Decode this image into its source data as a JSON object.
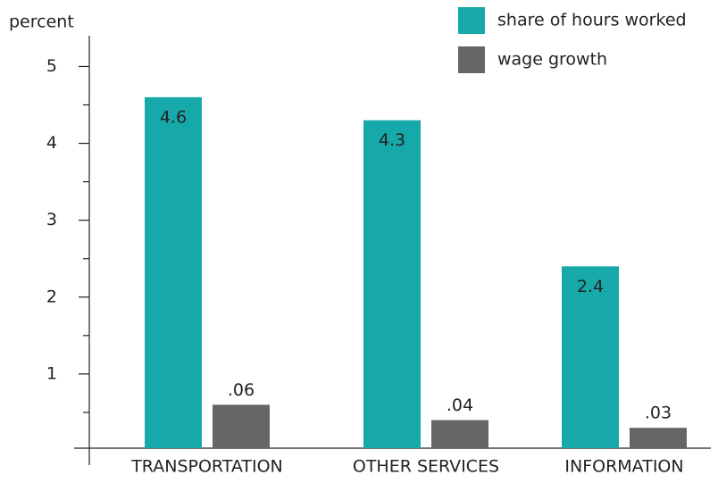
{
  "chart_data": {
    "type": "bar",
    "y_label": "percent",
    "categories": [
      "TRANSPORTATION",
      "OTHER SERVICES",
      "INFORMATION"
    ],
    "series": [
      {
        "name": "share of hours worked",
        "color": "#17a9a9",
        "values": [
          4.6,
          4.3,
          2.4
        ]
      },
      {
        "name": "wage growth",
        "color": "#666666",
        "axis": "y2",
        "values": [
          0.06,
          0.04,
          0.03
        ],
        "value_labels": [
          ".06",
          ".04",
          ".03"
        ]
      }
    ],
    "ylim": [
      0,
      5.4
    ],
    "yticks": [
      1,
      2,
      3,
      4,
      5
    ],
    "minor_yticks": [
      0.5,
      1.5,
      2.5,
      3.5,
      4.5
    ],
    "y2lim": [
      0,
      0.54
    ],
    "legend": "top right",
    "category_color": "#17a9a9"
  }
}
